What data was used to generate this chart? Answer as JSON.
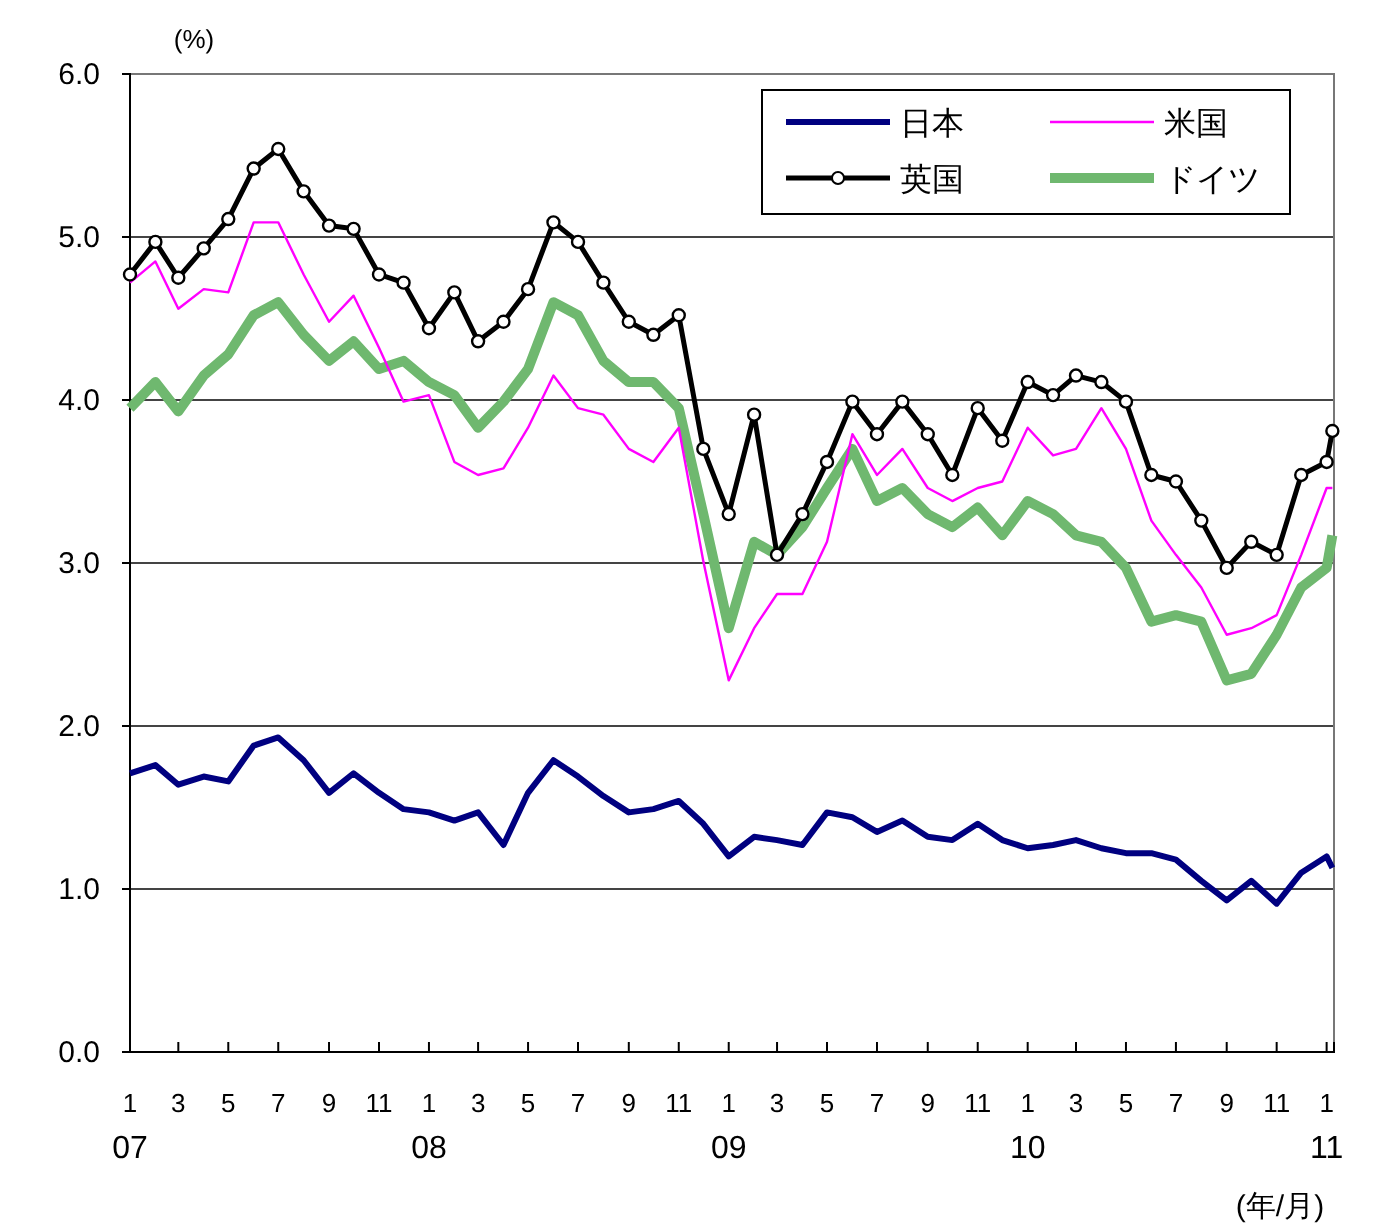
{
  "chart_data": {
    "type": "line",
    "ylabel": "(%)",
    "xlabel": "(年/月)",
    "x": [
      "2007-01",
      "2007-02",
      "2007-03",
      "2007-04",
      "2007-05",
      "2007-06",
      "2007-07",
      "2007-08",
      "2007-09",
      "2007-10",
      "2007-11",
      "2007-12",
      "2008-01",
      "2008-02",
      "2008-03",
      "2008-04",
      "2008-05",
      "2008-06",
      "2008-07",
      "2008-08",
      "2008-09",
      "2008-10",
      "2008-11",
      "2008-12",
      "2009-01",
      "2009-02",
      "2009-03",
      "2009-04",
      "2009-05",
      "2009-06",
      "2009-07",
      "2009-08",
      "2009-09",
      "2009-10",
      "2009-11",
      "2009-12",
      "2010-01",
      "2010-02",
      "2010-03",
      "2010-04",
      "2010-05",
      "2010-06",
      "2010-07",
      "2010-08",
      "2010-09",
      "2010-10",
      "2010-11",
      "2010-12",
      "2011-01",
      "2011-01-08"
    ],
    "series": [
      {
        "name": "日本",
        "color": "#000080",
        "values": [
          1.71,
          1.76,
          1.64,
          1.69,
          1.66,
          1.88,
          1.93,
          1.79,
          1.59,
          1.71,
          1.59,
          1.49,
          1.47,
          1.42,
          1.47,
          1.27,
          1.59,
          1.79,
          1.69,
          1.57,
          1.47,
          1.49,
          1.54,
          1.4,
          1.2,
          1.32,
          1.3,
          1.27,
          1.47,
          1.44,
          1.35,
          1.42,
          1.32,
          1.3,
          1.4,
          1.3,
          1.25,
          1.27,
          1.3,
          1.25,
          1.22,
          1.22,
          1.18,
          1.05,
          0.93,
          1.05,
          0.91,
          1.1,
          1.2,
          1.13
        ]
      },
      {
        "name": "米国",
        "color": "#ff00ff",
        "values": [
          4.72,
          4.85,
          4.56,
          4.68,
          4.66,
          5.09,
          5.09,
          4.77,
          4.48,
          4.64,
          4.32,
          3.99,
          4.03,
          3.62,
          3.54,
          3.58,
          3.83,
          4.15,
          3.95,
          3.91,
          3.7,
          3.62,
          3.83,
          3.01,
          2.28,
          2.6,
          2.81,
          2.81,
          3.13,
          3.79,
          3.54,
          3.7,
          3.46,
          3.38,
          3.46,
          3.5,
          3.83,
          3.66,
          3.7,
          3.95,
          3.7,
          3.26,
          3.05,
          2.85,
          2.56,
          2.6,
          2.68,
          3.05,
          3.46,
          3.46
        ]
      },
      {
        "name": "英国",
        "color": "#000000",
        "marker": "circle",
        "values": [
          4.77,
          4.97,
          4.75,
          4.93,
          5.11,
          5.42,
          5.54,
          5.28,
          5.07,
          5.05,
          4.77,
          4.72,
          4.44,
          4.66,
          4.36,
          4.48,
          4.68,
          5.09,
          4.97,
          4.72,
          4.48,
          4.4,
          4.52,
          3.7,
          3.3,
          3.91,
          3.05,
          3.3,
          3.62,
          3.99,
          3.79,
          3.99,
          3.79,
          3.54,
          3.95,
          3.75,
          4.11,
          4.03,
          4.15,
          4.11,
          3.99,
          3.54,
          3.5,
          3.26,
          2.97,
          3.13,
          3.05,
          3.54,
          3.62,
          3.81
        ]
      },
      {
        "name": "ドイツ",
        "color": "#6fb86f",
        "values": [
          3.95,
          4.11,
          3.93,
          4.15,
          4.28,
          4.52,
          4.6,
          4.4,
          4.24,
          4.36,
          4.19,
          4.24,
          4.11,
          4.03,
          3.83,
          3.99,
          4.19,
          4.6,
          4.52,
          4.24,
          4.11,
          4.11,
          3.95,
          3.3,
          2.6,
          3.13,
          3.05,
          3.22,
          3.46,
          3.7,
          3.38,
          3.46,
          3.3,
          3.22,
          3.34,
          3.17,
          3.38,
          3.3,
          3.17,
          3.13,
          2.97,
          2.64,
          2.68,
          2.64,
          2.28,
          2.32,
          2.56,
          2.85,
          2.97,
          3.17
        ]
      }
    ],
    "ylim": [
      0,
      6
    ],
    "yticks": [
      {
        "value": 0,
        "label": "0.0"
      },
      {
        "value": 1,
        "label": "1.0"
      },
      {
        "value": 2,
        "label": "2.0"
      },
      {
        "value": 3,
        "label": "3.0"
      },
      {
        "value": 4,
        "label": "4.0"
      },
      {
        "value": 5,
        "label": "5.0"
      },
      {
        "value": 6,
        "label": "6.0"
      }
    ],
    "xlim": [
      "2007-01-01",
      "2011-01-10"
    ],
    "xticks": [
      {
        "value": "2007-01",
        "label": "1\n07"
      },
      {
        "value": "2007-03",
        "label": "3"
      },
      {
        "value": "2007-05",
        "label": "5"
      },
      {
        "value": "2007-07",
        "label": "7"
      },
      {
        "value": "2007-09",
        "label": "9"
      },
      {
        "value": "2007-11",
        "label": "11"
      },
      {
        "value": "2008-01",
        "label": "1\n08"
      },
      {
        "value": "2008-03",
        "label": "3"
      },
      {
        "value": "2008-05",
        "label": "5"
      },
      {
        "value": "2008-07",
        "label": "7"
      },
      {
        "value": "2008-09",
        "label": "9"
      },
      {
        "value": "2008-11",
        "label": "11"
      },
      {
        "value": "2009-01",
        "label": "1\n09"
      },
      {
        "value": "2009-03",
        "label": "3"
      },
      {
        "value": "2009-05",
        "label": "5"
      },
      {
        "value": "2009-07",
        "label": "7"
      },
      {
        "value": "2009-09",
        "label": "9"
      },
      {
        "value": "2009-11",
        "label": "11"
      },
      {
        "value": "2010-01",
        "label": "1\n10"
      },
      {
        "value": "2010-03",
        "label": "3"
      },
      {
        "value": "2010-05",
        "label": "5"
      },
      {
        "value": "2010-07",
        "label": "7"
      },
      {
        "value": "2010-09",
        "label": "9"
      },
      {
        "value": "2010-11",
        "label": "11"
      },
      {
        "value": "2011-01",
        "label": "1\n11"
      }
    ],
    "grid": "y",
    "legend": "top right"
  }
}
